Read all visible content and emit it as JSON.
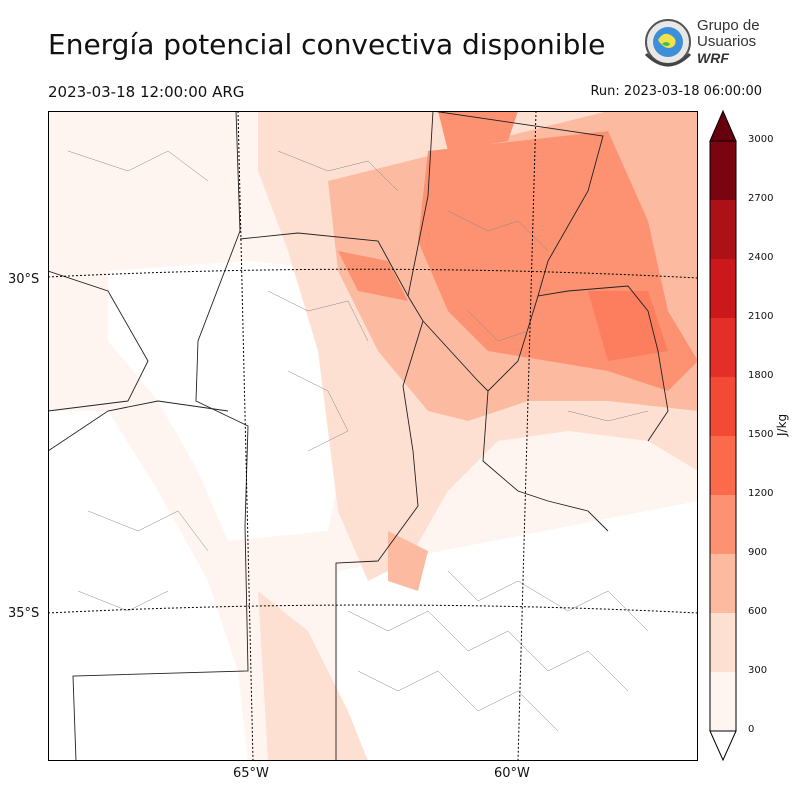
{
  "header": {
    "title": "Energía potencial convectiva disponible",
    "valid_time": "2023-03-18 12:00:00 ARG",
    "run_time": "Run: 2023-03-18 06:00:00"
  },
  "logo": {
    "line1": "Grupo de",
    "line2": "Usuarios",
    "line3": "WRF"
  },
  "map": {
    "lat_labels": [
      "30°S",
      "35°S"
    ],
    "lon_labels": [
      "65°W",
      "60°W"
    ]
  },
  "colorbar": {
    "units": "J/kg",
    "ticks": [
      "0",
      "300",
      "600",
      "900",
      "1200",
      "1500",
      "1800",
      "2100",
      "2400",
      "2700",
      "3000"
    ],
    "colors": [
      "#fff5f0",
      "#fee0d2",
      "#fcbba1",
      "#fc9272",
      "#fb6a4a",
      "#f34a36",
      "#e32f27",
      "#ca181d",
      "#ac1117",
      "#7a0510"
    ],
    "over_color": "#67000d",
    "under_color": "#ffffff"
  }
}
